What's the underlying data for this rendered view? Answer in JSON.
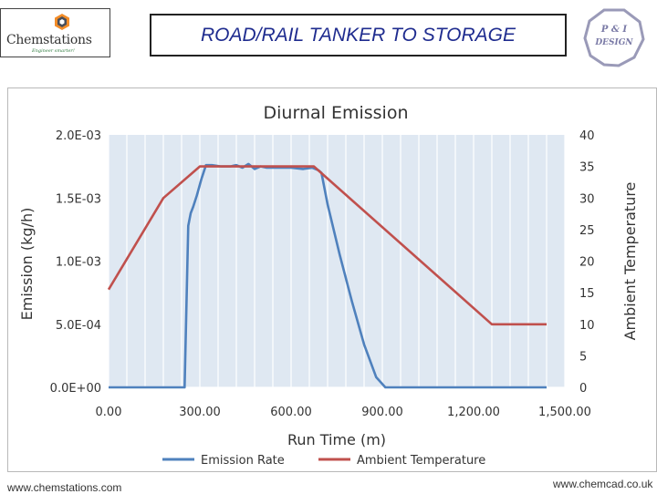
{
  "header": {
    "logo_text": "Chemstations",
    "logo_tagline": "Engineer smarter!",
    "title": "ROAD/RAIL TANKER TO STORAGE",
    "badge_line1": "P & I",
    "badge_line2": "DESIGN"
  },
  "footer": {
    "left": "www.chemstations.com",
    "right": "www.chemcad.co.uk"
  },
  "colors": {
    "title_text": "#1f2c8f",
    "plot_background": "#dfe8f2",
    "emission_rate": "#4f81bd",
    "ambient_temperature": "#c0504d"
  },
  "chart_data": {
    "type": "line",
    "title": "Diurnal Emission",
    "xlabel": "Run Time (m)",
    "ylabel": "Emission (kg/h)",
    "y2label": "Ambient Temperature",
    "xlim": [
      0,
      1500
    ],
    "ylim": [
      0,
      0.002
    ],
    "y2lim": [
      0,
      40
    ],
    "x_ticks": [
      0,
      300,
      600,
      900,
      1200,
      1500
    ],
    "x_tick_labels": [
      "0.00",
      "300.00",
      "600.00",
      "900.00",
      "1,200.00",
      "1,500.00"
    ],
    "y_ticks": [
      0,
      0.0005,
      0.001,
      0.0015,
      0.002
    ],
    "y_tick_labels": [
      "0.0E+00",
      "5.0E-04",
      "1.0E-03",
      "1.5E-03",
      "2.0E-03"
    ],
    "y2_ticks": [
      0,
      5,
      10,
      15,
      20,
      25,
      30,
      35,
      40
    ],
    "y2_tick_labels": [
      "0",
      "5",
      "10",
      "15",
      "20",
      "25",
      "30",
      "35",
      "40"
    ],
    "grid": "vertical",
    "legend_position": "bottom",
    "series": [
      {
        "name": "Emission Rate",
        "axis": "left",
        "x": [
          0,
          250,
          262,
          270,
          278,
          290,
          305,
          320,
          340,
          370,
          400,
          420,
          440,
          460,
          480,
          500,
          520,
          560,
          600,
          640,
          670,
          690,
          700,
          720,
          760,
          800,
          840,
          880,
          910,
          1000,
          1100,
          1200,
          1300,
          1440
        ],
        "y": [
          0,
          0,
          0.00128,
          0.00138,
          0.00143,
          0.00152,
          0.00165,
          0.00176,
          0.00176,
          0.00175,
          0.00175,
          0.00176,
          0.00174,
          0.00177,
          0.00173,
          0.00175,
          0.00174,
          0.00174,
          0.00174,
          0.00173,
          0.00174,
          0.00172,
          0.0017,
          0.00145,
          0.00105,
          0.00068,
          0.00034,
          8e-05,
          0,
          0,
          0,
          0,
          0,
          0
        ]
      },
      {
        "name": "Ambient Temperature",
        "axis": "right",
        "x": [
          0,
          180,
          300,
          675,
          1260,
          1440
        ],
        "y": [
          15.5,
          30,
          35,
          35,
          10,
          10
        ]
      }
    ]
  }
}
